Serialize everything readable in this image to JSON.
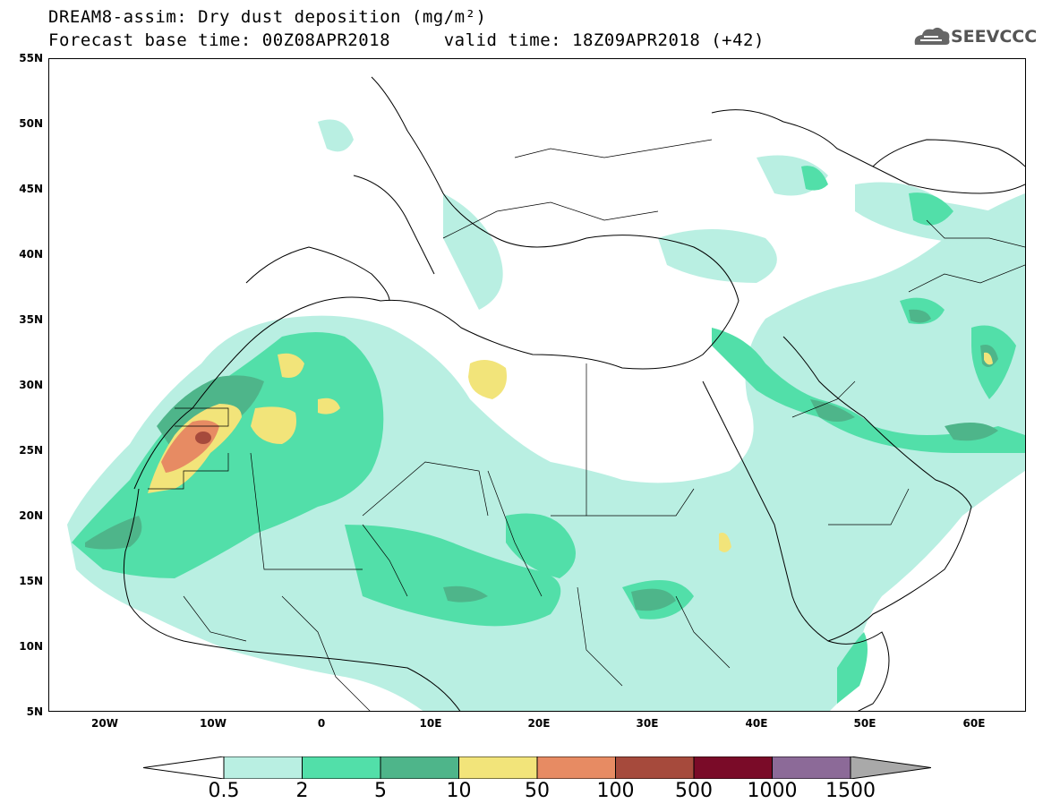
{
  "header": {
    "title_line1": "DREAM8-assim: Dry dust deposition (mg/m²)",
    "title_line2": "Forecast base time: 00Z08APR2018     valid time: 18Z09APR2018 (+42)",
    "logo_text": "SEEVCCC"
  },
  "map": {
    "lat_labels": [
      "55N",
      "50N",
      "45N",
      "40N",
      "35N",
      "30N",
      "25N",
      "20N",
      "15N",
      "10N",
      "5N"
    ],
    "lon_labels": [
      "20W",
      "10W",
      "0",
      "10E",
      "20E",
      "30E",
      "40E",
      "50E",
      "60E"
    ],
    "extent": {
      "lon": [
        -25,
        65
      ],
      "lat": [
        5,
        55
      ]
    }
  },
  "legend": {
    "levels": [
      "0.5",
      "2",
      "5",
      "10",
      "50",
      "100",
      "500",
      "1000",
      "1500"
    ],
    "colors": [
      "#b9efe2",
      "#52dfa9",
      "#4eb58a",
      "#f2e47a",
      "#e78b63",
      "#a64a3c",
      "#7a0b28",
      "#8c6a98",
      "#a9a9a9"
    ],
    "under_color": "#ffffff"
  }
}
